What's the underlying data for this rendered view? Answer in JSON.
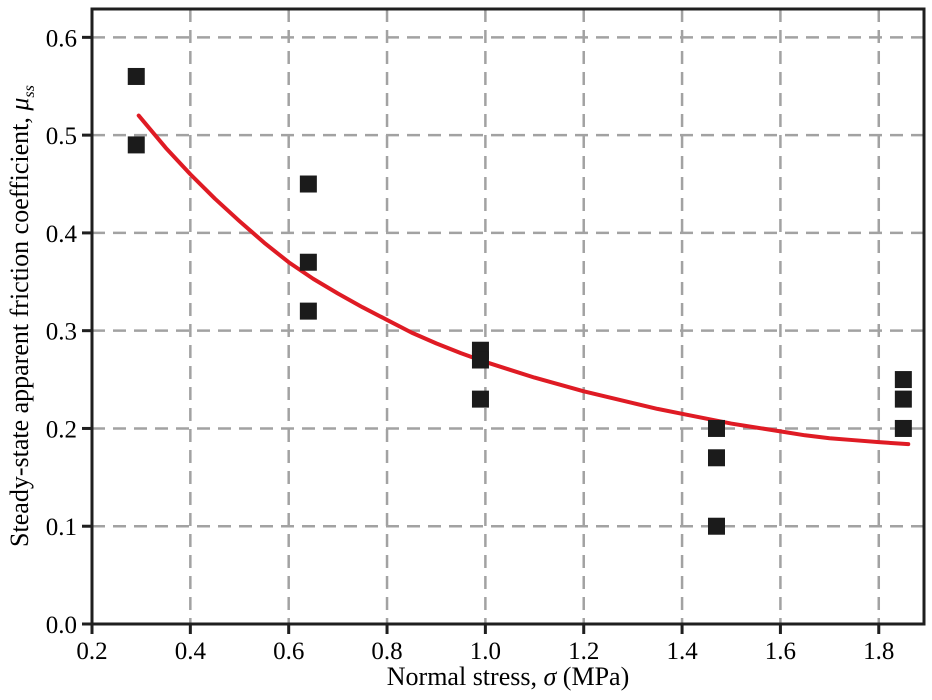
{
  "figure": {
    "background": "#ffffff"
  },
  "chart_data": {
    "type": "scatter",
    "title": "",
    "xlabel": {
      "prefix": "Normal stress, ",
      "symbol": "σ",
      "suffix": " (MPa)"
    },
    "ylabel": {
      "prefix": "Steady-state apparent friction coefficient, ",
      "symbol": "μ",
      "subscript": "ss"
    },
    "xlim": [
      0.2,
      1.892
    ],
    "ylim": [
      0,
      0.629
    ],
    "x_ticks": {
      "values": [
        0.2,
        0.4,
        0.6,
        0.8,
        1.0,
        1.2,
        1.4,
        1.6,
        1.8
      ],
      "labels": [
        "0.2",
        "0.4",
        "0.6",
        "0.8",
        "1.0",
        "1.2",
        "1.4",
        "1.6",
        "1.8"
      ]
    },
    "y_ticks": {
      "values": [
        0.0,
        0.1,
        0.2,
        0.3,
        0.4,
        0.5,
        0.6
      ],
      "labels": [
        "0.0",
        "0.1",
        "0.2",
        "0.3",
        "0.4",
        "0.5",
        "0.6"
      ]
    },
    "grid": {
      "visible": true,
      "style": "dashed",
      "color": "#a2a2a2"
    },
    "legend": {
      "visible": false
    },
    "points": [
      [
        0.29,
        0.56
      ],
      [
        0.29,
        0.49
      ],
      [
        0.64,
        0.45
      ],
      [
        0.64,
        0.37
      ],
      [
        0.64,
        0.32
      ],
      [
        0.99,
        0.28
      ],
      [
        0.99,
        0.27
      ],
      [
        0.99,
        0.23
      ],
      [
        1.47,
        0.2
      ],
      [
        1.47,
        0.17
      ],
      [
        1.47,
        0.1
      ],
      [
        1.85,
        0.25
      ],
      [
        1.85,
        0.23
      ],
      [
        1.85,
        0.2
      ]
    ],
    "marker": {
      "shape": "square",
      "size": 17,
      "color": "#1b1b1b"
    },
    "fit_curve": {
      "name": "fitted decay curve",
      "color": "#df1b24",
      "width": 4,
      "points": [
        [
          0.295,
          0.52
        ],
        [
          0.35,
          0.487
        ],
        [
          0.4,
          0.46
        ],
        [
          0.45,
          0.435
        ],
        [
          0.5,
          0.412
        ],
        [
          0.55,
          0.39
        ],
        [
          0.6,
          0.37
        ],
        [
          0.65,
          0.353
        ],
        [
          0.7,
          0.338
        ],
        [
          0.75,
          0.324
        ],
        [
          0.8,
          0.311
        ],
        [
          0.85,
          0.298
        ],
        [
          0.9,
          0.287
        ],
        [
          0.95,
          0.277
        ],
        [
          1.0,
          0.268
        ],
        [
          1.05,
          0.26
        ],
        [
          1.1,
          0.252
        ],
        [
          1.15,
          0.245
        ],
        [
          1.2,
          0.238
        ],
        [
          1.25,
          0.232
        ],
        [
          1.3,
          0.226
        ],
        [
          1.35,
          0.22
        ],
        [
          1.4,
          0.215
        ],
        [
          1.45,
          0.21
        ],
        [
          1.5,
          0.205
        ],
        [
          1.55,
          0.201
        ],
        [
          1.6,
          0.197
        ],
        [
          1.65,
          0.193
        ],
        [
          1.7,
          0.19
        ],
        [
          1.75,
          0.188
        ],
        [
          1.8,
          0.186
        ],
        [
          1.86,
          0.184
        ]
      ]
    },
    "axes": {
      "color": "#1f1f1f",
      "spine_width": 3,
      "tick_length": 10
    }
  }
}
